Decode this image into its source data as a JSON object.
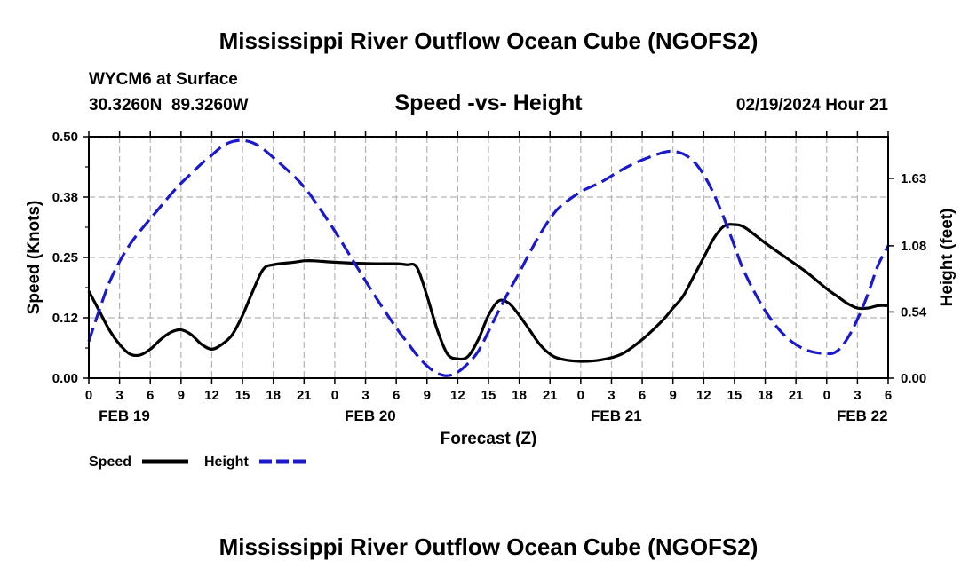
{
  "page": {
    "title": "Mississippi River Outflow Ocean Cube (NGOFS2)",
    "bottom_title": "Mississippi River Outflow Ocean Cube (NGOFS2)"
  },
  "header": {
    "station": "WYCM6 at Surface",
    "coordinates": "30.3260N  89.3260W",
    "datetime": "02/19/2024 Hour 21"
  },
  "colors": {
    "speed": "#000000",
    "height": "#1a1acc",
    "grid": "#b4b4b4"
  },
  "chart_data": {
    "type": "line",
    "title": "Speed -vs- Height",
    "xlabel": "Forecast (Z)",
    "ylabel": "Speed (Knots)",
    "y2label": "Height (feet)",
    "x_unit": "hours since FEB 19 00Z",
    "xlim": [
      0,
      78
    ],
    "ylim": [
      0,
      0.5
    ],
    "y2lim": [
      0,
      1.97
    ],
    "grid": true,
    "legend_position": "bottom-left",
    "x_tick_values": [
      0,
      3,
      6,
      9,
      12,
      15,
      18,
      21,
      24,
      27,
      30,
      33,
      36,
      39,
      42,
      45,
      48,
      51,
      54,
      57,
      60,
      63,
      66,
      69,
      72,
      75,
      78
    ],
    "x_tick_labels": [
      "0",
      "3",
      "6",
      "9",
      "12",
      "15",
      "18",
      "21",
      "0",
      "3",
      "6",
      "9",
      "12",
      "15",
      "18",
      "21",
      "0",
      "3",
      "6",
      "9",
      "12",
      "15",
      "18",
      "21",
      "0",
      "3",
      "6"
    ],
    "date_labels": [
      {
        "x": 0,
        "label": "FEB 19"
      },
      {
        "x": 24,
        "label": "FEB 20"
      },
      {
        "x": 48,
        "label": "FEB 21"
      },
      {
        "x": 72,
        "label": "FEB 22"
      }
    ],
    "y_ticks": [
      "0.00",
      "0.12",
      "0.25",
      "0.38",
      "0.50"
    ],
    "y_tick_values": [
      0,
      0.125,
      0.25,
      0.375,
      0.5
    ],
    "y2_ticks": [
      "0.00",
      "0.54",
      "1.08",
      "1.63"
    ],
    "y2_tick_values": [
      0,
      0.54,
      1.08,
      1.63
    ],
    "series": [
      {
        "name": "Speed",
        "axis": "left",
        "style": "solid",
        "x": [
          0,
          1,
          2,
          3,
          4,
          5,
          6,
          7,
          8,
          9,
          10,
          11,
          12,
          13,
          14,
          15,
          16,
          17,
          18,
          20,
          21,
          22,
          24,
          26,
          28,
          30,
          31,
          32,
          33,
          34,
          35,
          36,
          37,
          38,
          39,
          40,
          41,
          42,
          43,
          44,
          45,
          46,
          48,
          50,
          52,
          54,
          56,
          57,
          58,
          59,
          60,
          61,
          62,
          63,
          64,
          66,
          68,
          70,
          72,
          73,
          74,
          75,
          76,
          77,
          78
        ],
        "values": [
          0.18,
          0.14,
          0.1,
          0.07,
          0.05,
          0.048,
          0.06,
          0.08,
          0.095,
          0.1,
          0.09,
          0.07,
          0.06,
          0.07,
          0.09,
          0.13,
          0.18,
          0.225,
          0.235,
          0.24,
          0.243,
          0.243,
          0.24,
          0.238,
          0.237,
          0.237,
          0.235,
          0.23,
          0.17,
          0.1,
          0.05,
          0.04,
          0.045,
          0.08,
          0.13,
          0.16,
          0.155,
          0.13,
          0.1,
          0.07,
          0.05,
          0.04,
          0.035,
          0.038,
          0.05,
          0.08,
          0.12,
          0.145,
          0.17,
          0.21,
          0.25,
          0.29,
          0.315,
          0.318,
          0.312,
          0.28,
          0.25,
          0.22,
          0.185,
          0.17,
          0.155,
          0.145,
          0.145,
          0.15,
          0.15
        ]
      },
      {
        "name": "Height",
        "axis": "right",
        "style": "dashed",
        "x": [
          0,
          1,
          2,
          3,
          4,
          5,
          6,
          7,
          8,
          9,
          10,
          11,
          12,
          13,
          14,
          15,
          16,
          17,
          18,
          20,
          21,
          22,
          24,
          26,
          28,
          30,
          31,
          32,
          33,
          34,
          35,
          36,
          37,
          38,
          39,
          40,
          41,
          42,
          43,
          44,
          45,
          46,
          48,
          50,
          52,
          54,
          56,
          57,
          58,
          59,
          60,
          61,
          62,
          63,
          64,
          66,
          68,
          70,
          72,
          73,
          74,
          75,
          76,
          77,
          78
        ],
        "values": [
          0.3,
          0.55,
          0.78,
          0.95,
          1.09,
          1.2,
          1.3,
          1.4,
          1.5,
          1.59,
          1.67,
          1.75,
          1.82,
          1.89,
          1.93,
          1.94,
          1.92,
          1.87,
          1.8,
          1.65,
          1.56,
          1.45,
          1.2,
          0.93,
          0.66,
          0.41,
          0.3,
          0.19,
          0.1,
          0.04,
          0.02,
          0.05,
          0.12,
          0.22,
          0.38,
          0.55,
          0.71,
          0.86,
          1.02,
          1.17,
          1.3,
          1.4,
          1.52,
          1.6,
          1.7,
          1.78,
          1.84,
          1.85,
          1.83,
          1.77,
          1.66,
          1.5,
          1.3,
          1.08,
          0.86,
          0.55,
          0.34,
          0.23,
          0.2,
          0.22,
          0.32,
          0.48,
          0.68,
          0.92,
          1.08
        ]
      }
    ]
  }
}
